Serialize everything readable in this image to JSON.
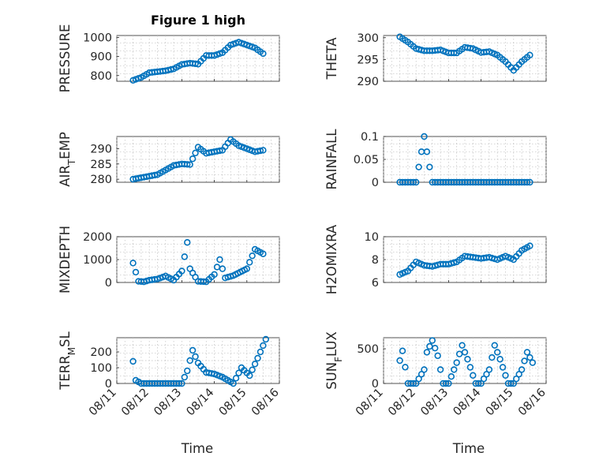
{
  "figure": {
    "title": "Figure 1 high",
    "marker_color": "#0072BD"
  },
  "chart_data": [
    {
      "type": "scatter",
      "ylabel": "PRESSURE",
      "ylabel_sub": "",
      "xlim": [
        "08/11",
        "08/16"
      ],
      "ylim": [
        770,
        1010
      ],
      "yticks": [
        800,
        900,
        1000
      ],
      "xtick_labels": [],
      "x": [
        "08/11 12:00",
        "08/11 18:00",
        "08/12 00:00",
        "08/12 06:00",
        "08/12 12:00",
        "08/12 18:00",
        "08/13 00:00",
        "08/13 06:00",
        "08/13 12:00",
        "08/13 18:00",
        "08/14 00:00",
        "08/14 06:00",
        "08/14 12:00",
        "08/14 18:00",
        "08/15 00:00",
        "08/15 06:00",
        "08/15 12:00"
      ],
      "y": [
        775,
        790,
        815,
        820,
        825,
        835,
        858,
        865,
        860,
        905,
        905,
        920,
        960,
        975,
        960,
        945,
        915
      ]
    },
    {
      "type": "scatter",
      "ylabel": "THETA",
      "ylabel_sub": "",
      "xlim": [
        "08/11",
        "08/16"
      ],
      "ylim": [
        290,
        300.5
      ],
      "yticks": [
        290,
        295,
        300
      ],
      "xtick_labels": [],
      "x": [
        "08/11 12:00",
        "08/11 18:00",
        "08/12 00:00",
        "08/12 06:00",
        "08/12 12:00",
        "08/12 18:00",
        "08/13 00:00",
        "08/13 06:00",
        "08/13 12:00",
        "08/13 18:00",
        "08/14 00:00",
        "08/14 06:00",
        "08/14 12:00",
        "08/14 18:00",
        "08/15 00:00",
        "08/15 06:00",
        "08/15 12:00"
      ],
      "y": [
        300.2,
        299,
        297.5,
        297,
        297,
        297.2,
        296.5,
        296.5,
        297.8,
        297.5,
        296.6,
        296.8,
        296,
        294.5,
        292.5,
        294.5,
        296
      ]
    },
    {
      "type": "scatter",
      "ylabel": "AIR",
      "ylabel_sub": "T",
      "ylabel_suffix": "EMP",
      "xlim": [
        "08/11",
        "08/16"
      ],
      "ylim": [
        279,
        294
      ],
      "yticks": [
        280,
        285,
        290
      ],
      "xtick_labels": [],
      "x": [
        "08/11 12:00",
        "08/11 18:00",
        "08/12 00:00",
        "08/12 06:00",
        "08/12 12:00",
        "08/12 18:00",
        "08/13 00:00",
        "08/13 06:00",
        "08/13 12:00",
        "08/13 18:00",
        "08/14 00:00",
        "08/14 06:00",
        "08/14 12:00",
        "08/14 18:00",
        "08/15 00:00",
        "08/15 06:00",
        "08/15 12:00"
      ],
      "y": [
        280,
        280.5,
        281,
        281.5,
        283,
        284.5,
        285,
        284.8,
        290.5,
        288.5,
        289,
        289.5,
        293,
        291,
        290,
        289,
        289.5
      ]
    },
    {
      "type": "scatter",
      "ylabel": "RAINFALL",
      "ylabel_sub": "",
      "xlim": [
        "08/11",
        "08/16"
      ],
      "ylim": [
        0,
        0.1
      ],
      "yticks": [
        0,
        0.05,
        0.1
      ],
      "xtick_labels": [],
      "x": [
        "08/11 12:00",
        "08/11 18:00",
        "08/12 00:00",
        "08/12 06:00",
        "08/12 12:00",
        "08/12 18:00",
        "08/13 00:00",
        "08/13 06:00",
        "08/13 12:00",
        "08/13 18:00",
        "08/14 00:00",
        "08/14 06:00",
        "08/14 12:00",
        "08/14 18:00",
        "08/15 00:00",
        "08/15 06:00",
        "08/15 12:00"
      ],
      "y": [
        0,
        0,
        0,
        0.1,
        0,
        0,
        0,
        0,
        0,
        0,
        0,
        0,
        0,
        0,
        0,
        0,
        0
      ]
    },
    {
      "type": "scatter",
      "ylabel": "MIXDEPTH",
      "ylabel_sub": "",
      "xlim": [
        "08/11",
        "08/16"
      ],
      "ylim": [
        0,
        2000
      ],
      "yticks": [
        0,
        1000,
        2000
      ],
      "xtick_labels": [],
      "x": [
        "08/11 12:00",
        "08/11 16:00",
        "08/11 20:00",
        "08/12 00:00",
        "08/12 06:00",
        "08/12 12:00",
        "08/12 18:00",
        "08/13 00:00",
        "08/13 04:00",
        "08/13 06:00",
        "08/13 12:00",
        "08/13 18:00",
        "08/14 00:00",
        "08/14 04:00",
        "08/14 08:00",
        "08/14 14:00",
        "08/15 00:00",
        "08/15 06:00",
        "08/15 12:00"
      ],
      "y": [
        850,
        50,
        30,
        100,
        150,
        280,
        100,
        500,
        1750,
        600,
        50,
        30,
        350,
        1000,
        200,
        300,
        600,
        1450,
        1250
      ]
    },
    {
      "type": "scatter",
      "ylabel": "H2OMIXRA",
      "ylabel_sub": "",
      "xlim": [
        "08/11",
        "08/16"
      ],
      "ylim": [
        6,
        10
      ],
      "yticks": [
        6,
        8,
        10
      ],
      "xtick_labels": [],
      "x": [
        "08/11 12:00",
        "08/11 18:00",
        "08/12 00:00",
        "08/12 06:00",
        "08/12 12:00",
        "08/12 18:00",
        "08/13 00:00",
        "08/13 06:00",
        "08/13 12:00",
        "08/13 18:00",
        "08/14 00:00",
        "08/14 06:00",
        "08/14 12:00",
        "08/14 18:00",
        "08/15 00:00",
        "08/15 06:00",
        "08/15 12:00"
      ],
      "y": [
        6.7,
        7,
        7.8,
        7.5,
        7.4,
        7.6,
        7.6,
        7.8,
        8.3,
        8.2,
        8.1,
        8.2,
        8.0,
        8.3,
        8.0,
        8.8,
        9.2
      ]
    },
    {
      "type": "scatter",
      "ylabel": "TERR",
      "ylabel_sub": "M",
      "ylabel_suffix": "SL",
      "xlim": [
        "08/11",
        "08/16"
      ],
      "ylim": [
        0,
        290
      ],
      "yticks": [
        0,
        100,
        200
      ],
      "xtick_labels": [
        "08/11",
        "08/12",
        "08/13",
        "08/14",
        "08/15",
        "08/16"
      ],
      "x": [
        "08/11 12:00",
        "08/11 14:00",
        "08/11 18:00",
        "08/12 00:00",
        "08/12 06:00",
        "08/12 12:00",
        "08/12 18:00",
        "08/13 00:00",
        "08/13 04:00",
        "08/13 08:00",
        "08/13 12:00",
        "08/13 18:00",
        "08/14 00:00",
        "08/14 06:00",
        "08/14 10:00",
        "08/14 14:00",
        "08/14 20:00",
        "08/15 02:00",
        "08/15 08:00",
        "08/15 14:00"
      ],
      "y": [
        140,
        20,
        0,
        0,
        0,
        0,
        0,
        0,
        80,
        210,
        130,
        70,
        60,
        40,
        20,
        0,
        100,
        50,
        160,
        280
      ]
    },
    {
      "type": "scatter",
      "ylabel": "SUN",
      "ylabel_sub": "F",
      "ylabel_suffix": "LUX",
      "xlim": [
        "08/11",
        "08/16"
      ],
      "ylim": [
        0,
        660
      ],
      "yticks": [
        0,
        500
      ],
      "xtick_labels": [
        "08/11",
        "08/12",
        "08/13",
        "08/14",
        "08/15",
        "08/16"
      ],
      "x": [
        "08/11 12:00",
        "08/11 14:00",
        "08/11 18:00",
        "08/12 00:00",
        "08/12 06:00",
        "08/12 08:00",
        "08/12 12:00",
        "08/12 16:00",
        "08/12 20:00",
        "08/13 00:00",
        "08/13 06:00",
        "08/13 10:00",
        "08/13 14:00",
        "08/13 20:00",
        "08/14 00:00",
        "08/14 06:00",
        "08/14 10:00",
        "08/14 14:00",
        "08/14 20:00",
        "08/15 00:00",
        "08/15 06:00",
        "08/15 10:00",
        "08/15 14:00"
      ],
      "y": [
        330,
        470,
        0,
        0,
        200,
        450,
        620,
        400,
        0,
        0,
        300,
        550,
        350,
        0,
        0,
        200,
        550,
        350,
        0,
        0,
        200,
        450,
        300
      ]
    }
  ],
  "xlabel": "Time"
}
